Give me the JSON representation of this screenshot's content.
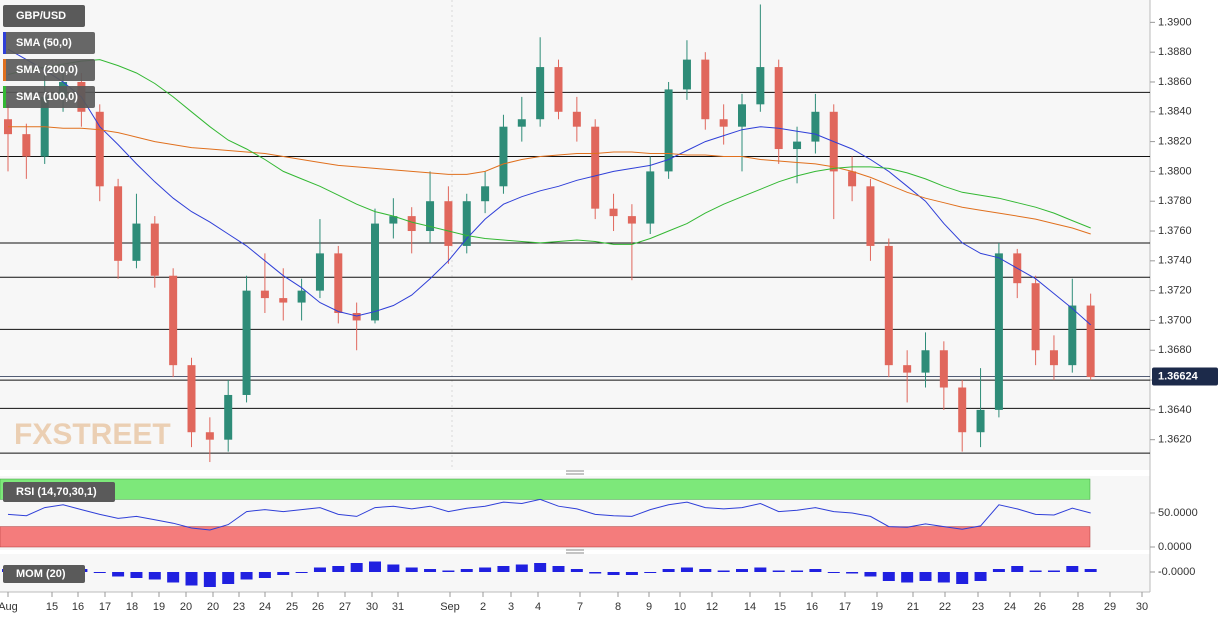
{
  "chart_data": [
    {
      "type": "candlestick",
      "title": "GBP/USD",
      "x_labels": [
        "Aug",
        "15",
        "16",
        "17",
        "18",
        "19",
        "20",
        "20",
        "23",
        "24",
        "25",
        "26",
        "27",
        "30",
        "31",
        "Sep",
        "2",
        "3",
        "4",
        "7",
        "8",
        "9",
        "10",
        "12",
        "14",
        "15",
        "16",
        "17",
        "19",
        "21",
        "22",
        "23",
        "24",
        "26",
        "28",
        "29",
        "30"
      ],
      "candles": {
        "open": [
          1.3835,
          1.3825,
          1.381,
          1.385,
          1.386,
          1.384,
          1.379,
          1.374,
          1.3765,
          1.373,
          1.367,
          1.3625,
          1.362,
          1.365,
          1.372,
          1.3715,
          1.3712,
          1.372,
          1.3745,
          1.3705,
          1.37,
          1.3765,
          1.377,
          1.376,
          1.378,
          1.375,
          1.378,
          1.379,
          1.383,
          1.3835,
          1.387,
          1.384,
          1.383,
          1.3775,
          1.377,
          1.3765,
          1.38,
          1.3855,
          1.3875,
          1.3835,
          1.383,
          1.3845,
          1.387,
          1.3815,
          1.382,
          1.384,
          1.38,
          1.379,
          1.375,
          1.367,
          1.3665,
          1.368,
          1.3655,
          1.3625,
          1.364,
          1.3745,
          1.3725,
          1.368,
          1.367,
          1.371
        ],
        "high": [
          1.3845,
          1.3832,
          1.3865,
          1.3872,
          1.3866,
          1.3845,
          1.3795,
          1.3785,
          1.377,
          1.3735,
          1.3675,
          1.3635,
          1.366,
          1.373,
          1.3745,
          1.3735,
          1.3728,
          1.3768,
          1.375,
          1.3712,
          1.3775,
          1.3782,
          1.3776,
          1.38,
          1.379,
          1.3785,
          1.38,
          1.3838,
          1.385,
          1.389,
          1.3875,
          1.385,
          1.3835,
          1.3785,
          1.3778,
          1.381,
          1.386,
          1.3888,
          1.388,
          1.3845,
          1.3852,
          1.3912,
          1.3875,
          1.383,
          1.3852,
          1.3845,
          1.381,
          1.3795,
          1.3755,
          1.368,
          1.3692,
          1.3686,
          1.366,
          1.3668,
          1.3752,
          1.3748,
          1.373,
          1.369,
          1.3728,
          1.3718
        ],
        "low": [
          1.38,
          1.3795,
          1.3805,
          1.384,
          1.383,
          1.378,
          1.3728,
          1.3735,
          1.3722,
          1.3662,
          1.3615,
          1.3605,
          1.3612,
          1.3645,
          1.3705,
          1.37,
          1.37,
          1.3715,
          1.3698,
          1.368,
          1.3698,
          1.3755,
          1.3745,
          1.3752,
          1.3738,
          1.3745,
          1.3772,
          1.3785,
          1.382,
          1.383,
          1.3835,
          1.382,
          1.3768,
          1.376,
          1.3727,
          1.3758,
          1.3795,
          1.3848,
          1.3828,
          1.3818,
          1.38,
          1.384,
          1.3805,
          1.3792,
          1.3812,
          1.3768,
          1.378,
          1.374,
          1.3662,
          1.3645,
          1.3655,
          1.364,
          1.3612,
          1.3615,
          1.3635,
          1.3715,
          1.367,
          1.366,
          1.3665,
          1.366
        ],
        "close": [
          1.3825,
          1.381,
          1.385,
          1.386,
          1.384,
          1.379,
          1.374,
          1.3765,
          1.373,
          1.367,
          1.3625,
          1.362,
          1.365,
          1.372,
          1.3715,
          1.3712,
          1.372,
          1.3745,
          1.3705,
          1.37,
          1.3765,
          1.377,
          1.376,
          1.378,
          1.375,
          1.378,
          1.379,
          1.383,
          1.3835,
          1.387,
          1.384,
          1.383,
          1.3775,
          1.377,
          1.3765,
          1.38,
          1.3855,
          1.3875,
          1.3835,
          1.383,
          1.3845,
          1.387,
          1.3815,
          1.382,
          1.384,
          1.38,
          1.379,
          1.375,
          1.367,
          1.3665,
          1.368,
          1.3655,
          1.3625,
          1.364,
          1.3745,
          1.3725,
          1.368,
          1.367,
          1.371,
          1.3662
        ]
      },
      "up_color": "#2e8c78",
      "down_color": "#e0675c",
      "series": [
        {
          "name": "SMA (50,0)",
          "color": "#2f3fd8",
          "values": [
            1.3882,
            1.3875,
            1.3868,
            1.386,
            1.385,
            1.383,
            1.3818,
            1.3805,
            1.3793,
            1.3782,
            1.3773,
            1.3766,
            1.3758,
            1.375,
            1.374,
            1.373,
            1.3722,
            1.3712,
            1.3706,
            1.3703,
            1.3706,
            1.371,
            1.3717,
            1.3728,
            1.374,
            1.3755,
            1.3768,
            1.3778,
            1.3783,
            1.3787,
            1.379,
            1.3794,
            1.3797,
            1.38,
            1.3802,
            1.3804,
            1.3808,
            1.3814,
            1.382,
            1.3824,
            1.3828,
            1.383,
            1.3829,
            1.3827,
            1.3825,
            1.382,
            1.3815,
            1.3808,
            1.38,
            1.379,
            1.378,
            1.3765,
            1.3752,
            1.3745,
            1.3742,
            1.3735,
            1.3728,
            1.3718,
            1.3708,
            1.3697
          ]
        },
        {
          "name": "SMA (200,0)",
          "color": "#e0701e",
          "values": [
            1.383,
            1.383,
            1.383,
            1.3829,
            1.3829,
            1.3828,
            1.3826,
            1.3823,
            1.382,
            1.3818,
            1.3816,
            1.3815,
            1.3814,
            1.3813,
            1.3812,
            1.381,
            1.3808,
            1.3806,
            1.3804,
            1.3803,
            1.3802,
            1.3801,
            1.38,
            1.3799,
            1.3798,
            1.3798,
            1.38,
            1.3805,
            1.3808,
            1.381,
            1.3811,
            1.3812,
            1.3812,
            1.3813,
            1.3813,
            1.3812,
            1.3812,
            1.3811,
            1.3811,
            1.381,
            1.381,
            1.3808,
            1.3807,
            1.3806,
            1.3805,
            1.3803,
            1.38,
            1.3796,
            1.3791,
            1.3786,
            1.3782,
            1.3779,
            1.3776,
            1.3774,
            1.3772,
            1.377,
            1.3768,
            1.3765,
            1.3762,
            1.3758
          ]
        },
        {
          "name": "SMA (100,0)",
          "color": "#33b833",
          "values": [
            1.3865,
            1.3868,
            1.387,
            1.3872,
            1.3874,
            1.3875,
            1.3871,
            1.3866,
            1.3859,
            1.385,
            1.384,
            1.383,
            1.3821,
            1.3815,
            1.3808,
            1.38,
            1.3795,
            1.379,
            1.3784,
            1.3778,
            1.3773,
            1.377,
            1.3766,
            1.3763,
            1.376,
            1.3757,
            1.3755,
            1.3754,
            1.3753,
            1.3752,
            1.3753,
            1.3754,
            1.3753,
            1.3751,
            1.3751,
            1.3755,
            1.376,
            1.3765,
            1.3772,
            1.3778,
            1.3783,
            1.3788,
            1.3793,
            1.3797,
            1.38,
            1.3802,
            1.3803,
            1.3803,
            1.3802,
            1.3799,
            1.3795,
            1.379,
            1.3786,
            1.3784,
            1.3782,
            1.3779,
            1.3776,
            1.3772,
            1.3767,
            1.3762
          ]
        }
      ],
      "ylim": [
        1.3601,
        1.3915
      ],
      "yticks": [
        {
          "value": 1.39,
          "label": "1.3900"
        },
        {
          "value": 1.388,
          "label": "1.3880"
        },
        {
          "value": 1.386,
          "label": "1.3860"
        },
        {
          "value": 1.384,
          "label": "1.3840"
        },
        {
          "value": 1.382,
          "label": "1.3820"
        },
        {
          "value": 1.38,
          "label": "1.3800"
        },
        {
          "value": 1.378,
          "label": "1.3780"
        },
        {
          "value": 1.376,
          "label": "1.3760"
        },
        {
          "value": 1.374,
          "label": "1.3740"
        },
        {
          "value": 1.372,
          "label": "1.3720"
        },
        {
          "value": 1.37,
          "label": "1.3700"
        },
        {
          "value": 1.368,
          "label": "1.3680"
        },
        {
          "value": 1.366,
          "label": "1.3660"
        },
        {
          "value": 1.364,
          "label": "1.3640"
        },
        {
          "value": 1.362,
          "label": "1.3620"
        }
      ],
      "levels": [
        1.3853,
        1.381,
        1.3752,
        1.3729,
        1.3694,
        1.366,
        1.3641,
        1.3611
      ],
      "last_price": 1.36624,
      "watermark": "FXSTREET"
    },
    {
      "type": "line",
      "title": "RSI (14,70,30,1)",
      "color": "#2f3fd8",
      "values": [
        48,
        46,
        58,
        62,
        55,
        48,
        42,
        45,
        40,
        35,
        28,
        25,
        33,
        52,
        55,
        52,
        55,
        58,
        48,
        45,
        58,
        60,
        56,
        60,
        52,
        57,
        60,
        66,
        64,
        70,
        60,
        56,
        48,
        46,
        45,
        55,
        62,
        66,
        58,
        56,
        58,
        64,
        52,
        54,
        58,
        52,
        50,
        45,
        30,
        29,
        34,
        30,
        26,
        31,
        62,
        56,
        48,
        47,
        57,
        50
      ],
      "ylim": [
        0,
        100
      ],
      "overbought": 70,
      "oversold": 30,
      "yticks": [
        {
          "value": 50,
          "label": "50.0000"
        },
        {
          "value": 0,
          "label": "0.0000"
        }
      ]
    },
    {
      "type": "bar",
      "title": "MOM (20)",
      "color": "#2020e0",
      "values": [
        0.002,
        0.003,
        0.004,
        0.004,
        0.002,
        0.0,
        -0.003,
        -0.004,
        -0.005,
        -0.007,
        -0.009,
        -0.01,
        -0.008,
        -0.005,
        -0.004,
        -0.002,
        0.0,
        0.003,
        0.004,
        0.006,
        0.007,
        0.005,
        0.003,
        0.002,
        0.001,
        0.002,
        0.003,
        0.004,
        0.005,
        0.006,
        0.004,
        0.002,
        -0.001,
        -0.002,
        -0.002,
        0.0,
        0.002,
        0.003,
        0.002,
        0.001,
        0.002,
        0.003,
        0.001,
        0.001,
        0.002,
        0.0,
        -0.001,
        -0.003,
        -0.006,
        -0.007,
        -0.006,
        -0.007,
        -0.008,
        -0.006,
        0.002,
        0.004,
        0.001,
        0.001,
        0.004,
        0.002
      ],
      "ylim": [
        -0.012,
        0.012
      ],
      "yticks": [
        {
          "value": 0,
          "label": "-0.0000"
        }
      ]
    }
  ]
}
